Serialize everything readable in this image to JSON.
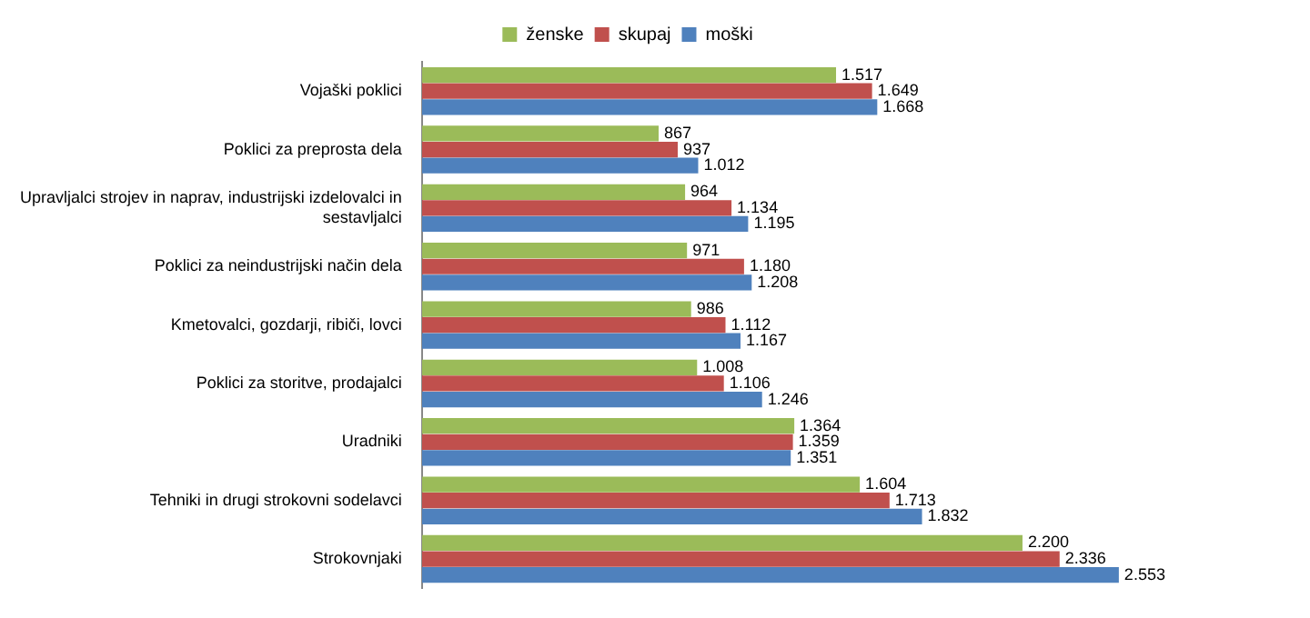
{
  "chart_data": {
    "type": "bar",
    "orientation": "horizontal",
    "categories": [
      "Vojaški poklici",
      "Poklici za preprosta dela",
      "Upravljalci strojev in naprav, industrijski izdelovalci in sestavljalci",
      "Poklici za neindustrijski način dela",
      "Kmetovalci, gozdarji, ribiči, lovci",
      "Poklici za storitve, prodajalci",
      "Uradniki",
      "Tehniki in drugi strokovni sodelavci",
      "Strokovnjaki"
    ],
    "series": [
      {
        "name": "ženske",
        "color": "#9bbb59",
        "values": [
          1517,
          867,
          964,
          971,
          986,
          1008,
          1364,
          1604,
          2200
        ],
        "value_labels": [
          "1.517",
          "867",
          "964",
          "971",
          "986",
          "1.008",
          "1.364",
          "1.604",
          "2.200"
        ]
      },
      {
        "name": "skupaj",
        "color": "#c0504d",
        "values": [
          1649,
          937,
          1134,
          1180,
          1112,
          1106,
          1359,
          1713,
          2336
        ],
        "value_labels": [
          "1.649",
          "937",
          "1.134",
          "1.180",
          "1.112",
          "1.106",
          "1.359",
          "1.713",
          "2.336"
        ]
      },
      {
        "name": "moški",
        "color": "#4f81bd",
        "values": [
          1668,
          1012,
          1195,
          1208,
          1167,
          1246,
          1351,
          1832,
          2553
        ],
        "value_labels": [
          "1.668",
          "1.012",
          "1.195",
          "1.208",
          "1.167",
          "1.246",
          "1.351",
          "1.832",
          "2.553"
        ]
      }
    ],
    "legend": "top"
  }
}
